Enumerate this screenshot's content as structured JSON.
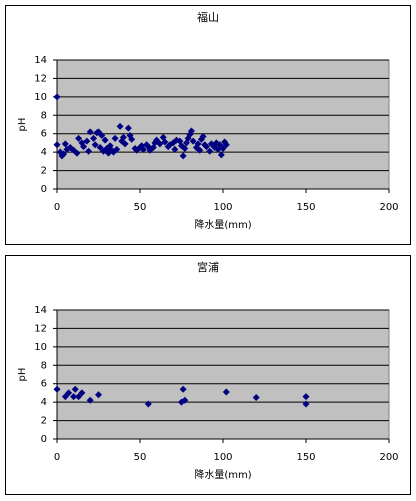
{
  "chart_data": [
    {
      "type": "scatter",
      "title": "福山",
      "x_label": "降水量(mm)",
      "y_label": "pH",
      "color": "#000080",
      "x": [
        0,
        0,
        2,
        3,
        4,
        5,
        6,
        8,
        10,
        12,
        13,
        15,
        16,
        18,
        19,
        20,
        22,
        23,
        24,
        25,
        26,
        27,
        28,
        29,
        30,
        31,
        32,
        33,
        34,
        35,
        36,
        38,
        39,
        40,
        41,
        43,
        44,
        45,
        47,
        48,
        50,
        51,
        52,
        54,
        55,
        56,
        58,
        59,
        60,
        62,
        64,
        65,
        67,
        68,
        70,
        71,
        72,
        74,
        75,
        76,
        77,
        78,
        79,
        80,
        81,
        82,
        84,
        85,
        86,
        87,
        88,
        89,
        90,
        92,
        93,
        95,
        96,
        97,
        98,
        99,
        100,
        101,
        102
      ],
      "values": [
        10,
        4.8,
        4,
        3.6,
        3.8,
        4.9,
        4.3,
        4.5,
        4.2,
        3.9,
        5.5,
        5,
        4.6,
        5.2,
        4.1,
        6.2,
        5.5,
        4.8,
        6.1,
        6.2,
        4.5,
        5.8,
        4.1,
        5.3,
        4.4,
        3.9,
        4.7,
        4.2,
        4.0,
        5.5,
        4.3,
        6.8,
        5.2,
        5.6,
        4.9,
        6.6,
        5.8,
        5.4,
        4.4,
        4.2,
        4.5,
        4.7,
        4.3,
        4.8,
        4.6,
        4.2,
        4.5,
        5.0,
        5.3,
        4.9,
        5.6,
        5.1,
        4.6,
        4.8,
        5.0,
        4.3,
        5.3,
        5.2,
        4.7,
        3.6,
        4.4,
        5.0,
        5.5,
        5.9,
        6.3,
        5.2,
        4.5,
        4.9,
        4.2,
        5.4,
        5.7,
        4.8,
        4.6,
        4.1,
        4.9,
        4.5,
        5.0,
        4.3,
        4.8,
        3.7,
        4.4,
        5.1,
        4.8
      ],
      "xlim": [
        0,
        200
      ],
      "xticks": [
        0,
        50,
        100,
        150,
        200
      ],
      "ylim": [
        0,
        14
      ],
      "yticks": [
        0,
        2,
        4,
        6,
        8,
        10,
        12,
        14
      ],
      "grid": true
    },
    {
      "type": "scatter",
      "title": "宮浦",
      "x_label": "降水量(mm)",
      "y_label": "pH",
      "color": "#000080",
      "x": [
        0,
        5,
        7,
        10,
        11,
        13,
        15,
        20,
        25,
        55,
        75,
        76,
        77,
        102,
        120,
        150,
        150
      ],
      "values": [
        5.4,
        4.6,
        5,
        4.6,
        5.4,
        4.6,
        5,
        4.2,
        4.8,
        3.8,
        4,
        5.4,
        4.2,
        5.1,
        4.5,
        4.6,
        3.8
      ],
      "xlim": [
        0,
        200
      ],
      "xticks": [
        0,
        50,
        100,
        150,
        200
      ],
      "ylim": [
        0,
        14
      ],
      "yticks": [
        0,
        2,
        4,
        6,
        8,
        10,
        12,
        14
      ],
      "grid": true
    }
  ]
}
